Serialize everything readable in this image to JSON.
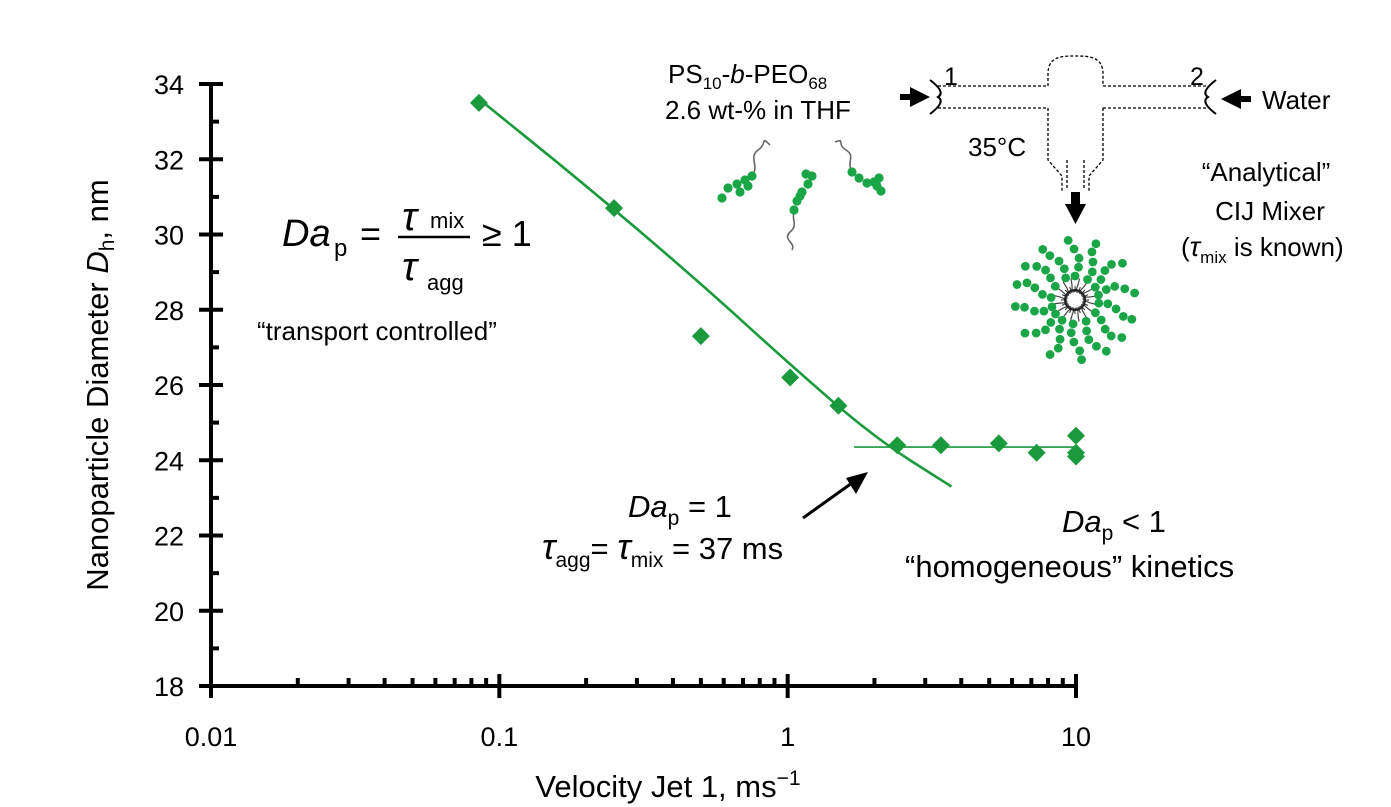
{
  "chart_data": {
    "type": "scatter",
    "x_scale": "log",
    "xlim": [
      0.01,
      10
    ],
    "ylim": [
      18,
      34
    ],
    "x_ticks": [
      "0.01",
      "0.1",
      "1",
      "10"
    ],
    "y_ticks": [
      "18",
      "20",
      "22",
      "24",
      "26",
      "28",
      "30",
      "32",
      "34"
    ],
    "xlabel": {
      "main": "Velocity Jet 1, ms",
      "sup": "−1"
    },
    "ylabel": {
      "main": "Nanoparticle Diameter ",
      "italic": "D",
      "sub": "h",
      "tail": ", nm"
    },
    "series": [
      {
        "color": "#1a9a3c",
        "marker": "diamond",
        "points": [
          {
            "x": 0.085,
            "y": 33.5
          },
          {
            "x": 0.25,
            "y": 30.7
          },
          {
            "x": 0.5,
            "y": 27.3
          },
          {
            "x": 1.02,
            "y": 26.2
          },
          {
            "x": 1.5,
            "y": 25.45
          },
          {
            "x": 2.4,
            "y": 24.4
          },
          {
            "x": 3.4,
            "y": 24.4
          },
          {
            "x": 5.4,
            "y": 24.45
          },
          {
            "x": 7.3,
            "y": 24.2
          },
          {
            "x": 10.0,
            "y": 24.65
          },
          {
            "x": 10.0,
            "y": 24.2
          },
          {
            "x": 10.0,
            "y": 24.1
          }
        ]
      }
    ],
    "trend_lines": [
      {
        "color": "#1a9a3c",
        "points": [
          [
            0.085,
            33.6
          ],
          [
            0.2,
            31.3
          ],
          [
            0.5,
            28.7
          ],
          [
            1.0,
            26.6
          ],
          [
            2.0,
            24.6
          ],
          [
            3.7,
            23.3
          ]
        ]
      },
      {
        "color": "#1a9a3c",
        "points": [
          [
            1.7,
            24.35
          ],
          [
            10.0,
            24.35
          ]
        ]
      }
    ]
  },
  "annotations": {
    "da_eq": {
      "da": "Da",
      "sub": "p",
      "eq": "=",
      "num_tau": "τ",
      "num_sub": "mix",
      "den_tau": "τ",
      "den_sub": "agg",
      "rel": "≥ 1"
    },
    "transport": "“transport controlled”",
    "da1_line1": {
      "da": "Da",
      "sub": "p",
      "rest": " = 1"
    },
    "da1_line2": {
      "t1": "τ",
      "s1": "agg",
      "eq1": "= ",
      "t2": "τ",
      "s2": "mix",
      "rest": " = 37 ms"
    },
    "da_lt": {
      "da": "Da",
      "sub": "p",
      "rest": " < 1"
    },
    "homogeneous": "“homogeneous” kinetics",
    "polymer1": {
      "a": "PS",
      "sa": "10",
      "b": "-",
      "c": "b",
      "d": "-PEO",
      "sd": "68"
    },
    "polymer2": "2.6 wt-% in THF",
    "temp": "35°C",
    "port1": "1",
    "port2": "2",
    "water": "Water",
    "mixer1": "“Analytical”",
    "mixer2": "CIJ Mixer",
    "mixer3": {
      "open": "(",
      "tau": "τ",
      "sub": "mix",
      "rest": " is known)"
    }
  }
}
